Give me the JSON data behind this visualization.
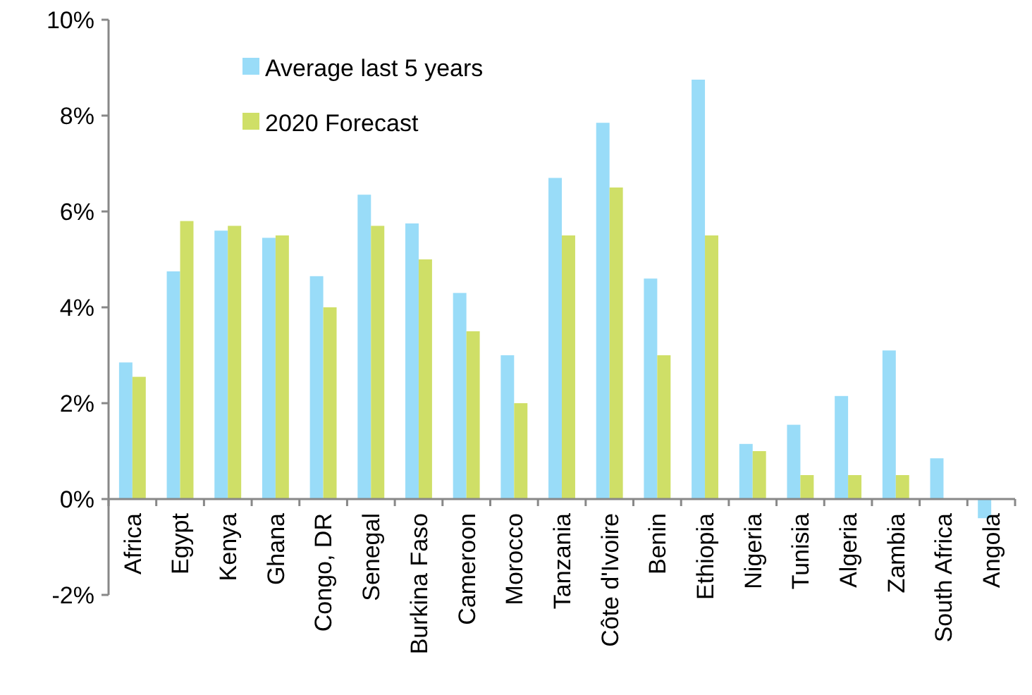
{
  "chart_data": {
    "type": "bar",
    "categories": [
      "Africa",
      "Egypt",
      "Kenya",
      "Ghana",
      "Congo, DR",
      "Senegal",
      "Burkina Faso",
      "Cameroon",
      "Morocco",
      "Tanzania",
      "Côte d'Ivoire",
      "Benin",
      "Ethiopia",
      "Nigeria",
      "Tunisia",
      "Algeria",
      "Zambia",
      "South Africa",
      "Angola"
    ],
    "series": [
      {
        "name": "Average last 5 years",
        "color": "#99dcf8",
        "values": [
          2.85,
          4.75,
          5.6,
          5.45,
          4.65,
          6.35,
          5.75,
          4.3,
          3.0,
          6.7,
          7.85,
          4.6,
          8.75,
          1.15,
          1.55,
          2.15,
          3.1,
          0.85,
          -0.4
        ]
      },
      {
        "name": "2020 Forecast",
        "color": "#cfdf67",
        "values": [
          2.55,
          5.8,
          5.7,
          5.5,
          4.0,
          5.7,
          5.0,
          3.5,
          2.0,
          5.5,
          6.5,
          3.0,
          5.5,
          1.0,
          0.5,
          0.5,
          0.5,
          null,
          null
        ]
      }
    ],
    "ylim": [
      -2,
      10
    ],
    "yticks": [
      {
        "value": -2,
        "label": "-2%"
      },
      {
        "value": 0,
        "label": "0%"
      },
      {
        "value": 2,
        "label": "2%"
      },
      {
        "value": 4,
        "label": "4%"
      },
      {
        "value": 6,
        "label": "6%"
      },
      {
        "value": 8,
        "label": "8%"
      },
      {
        "value": 10,
        "label": "10%"
      }
    ],
    "grid": false,
    "legend": "top left"
  }
}
